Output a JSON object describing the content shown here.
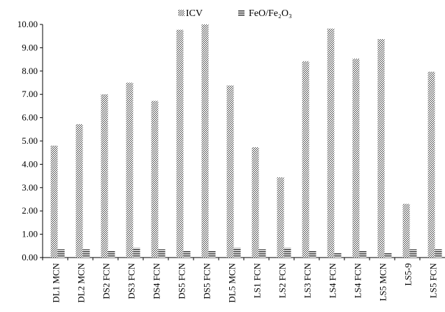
{
  "chart_data": {
    "type": "bar",
    "categories": [
      "DL1 MCN",
      "DL2 MCN",
      "DS2 FCN",
      "DS3 FCN",
      "DS4 FCN",
      "DS5 FCN",
      "DS5 FCN",
      "DL5 MCN",
      "LS1 FCN",
      "LS2 FCN",
      "LS3 FCN",
      "LS4 FCN",
      "LS4 FCN",
      "LS5 MCN",
      "LS5-9",
      "LS5 FCN"
    ],
    "series": [
      {
        "name": "ICV",
        "values": [
          4.8,
          5.72,
          7.0,
          7.5,
          6.72,
          9.77,
          10.0,
          7.38,
          4.73,
          3.44,
          8.42,
          9.82,
          8.53,
          9.37,
          2.3,
          7.97
        ]
      },
      {
        "name": "FeO/Fe₂O₃",
        "values": [
          0.35,
          0.35,
          0.27,
          0.42,
          0.35,
          0.28,
          0.27,
          0.42,
          0.35,
          0.42,
          0.27,
          0.2,
          0.27,
          0.2,
          0.35,
          0.35
        ]
      }
    ],
    "yticks": [
      "0.00",
      "1.00",
      "2.00",
      "3.00",
      "4.00",
      "5.00",
      "6.00",
      "7.00",
      "8.00",
      "9.00",
      "10.00"
    ],
    "ylim": [
      0,
      10
    ],
    "grid": false,
    "legend_position": "top",
    "colors": {
      "icv_pattern_fg": "#333333",
      "icv_pattern_bg": "#ffffff",
      "feo_pattern_fg": "#222222",
      "feo_pattern_bg": "#ffffff"
    }
  }
}
